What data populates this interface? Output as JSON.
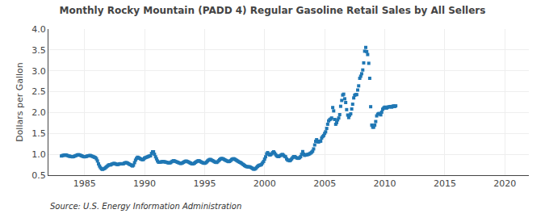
{
  "chart_data": {
    "type": "scatter",
    "title": "Monthly Rocky Mountain (PADD 4) Regular Gasoline Retail Sales by All Sellers",
    "ylabel": "Dollars per Gallon",
    "annotations": [
      "Source: U.S. Energy Information Administration"
    ],
    "xlim": [
      1982,
      2022
    ],
    "ylim": [
      0.5,
      4.0
    ],
    "xticks": [
      1985,
      1990,
      1995,
      2000,
      2005,
      2010,
      2015,
      2020
    ],
    "yticks": [
      0.5,
      {
        "value": 1.0,
        "label": "1.0"
      },
      1.5,
      {
        "value": 2.0,
        "label": "2.0"
      },
      2.5,
      {
        "value": 3.0,
        "label": "3.0"
      },
      3.5,
      {
        "value": 4.0,
        "label": "4.0"
      }
    ],
    "grid": true,
    "marker": "square",
    "x": [
      1983.08,
      1983.17,
      1983.25,
      1983.33,
      1983.42,
      1983.5,
      1983.58,
      1983.67,
      1983.75,
      1983.83,
      1983.92,
      1984.0,
      1984.08,
      1984.17,
      1984.25,
      1984.33,
      1984.42,
      1984.5,
      1984.58,
      1984.67,
      1984.75,
      1984.83,
      1984.92,
      1985.0,
      1985.08,
      1985.17,
      1985.25,
      1985.33,
      1985.42,
      1985.5,
      1985.58,
      1985.67,
      1985.75,
      1985.83,
      1985.92,
      1986.0,
      1986.08,
      1986.17,
      1986.25,
      1986.33,
      1986.42,
      1986.5,
      1986.58,
      1986.67,
      1986.75,
      1986.83,
      1986.92,
      1987.0,
      1987.08,
      1987.17,
      1987.25,
      1987.33,
      1987.42,
      1987.5,
      1987.58,
      1987.67,
      1987.75,
      1987.83,
      1987.92,
      1988.0,
      1988.08,
      1988.17,
      1988.25,
      1988.33,
      1988.42,
      1988.5,
      1988.58,
      1988.67,
      1988.75,
      1988.83,
      1988.92,
      1989.0,
      1989.08,
      1989.17,
      1989.25,
      1989.33,
      1989.42,
      1989.5,
      1989.58,
      1989.67,
      1989.75,
      1989.83,
      1989.92,
      1990.0,
      1990.08,
      1990.17,
      1990.25,
      1990.33,
      1990.42,
      1990.5,
      1990.58,
      1990.67,
      1990.75,
      1990.83,
      1990.92,
      1991.0,
      1991.08,
      1991.17,
      1991.25,
      1991.33,
      1991.42,
      1991.5,
      1991.58,
      1991.67,
      1991.75,
      1991.83,
      1991.92,
      1992.0,
      1992.08,
      1992.17,
      1992.25,
      1992.33,
      1992.42,
      1992.5,
      1992.58,
      1992.67,
      1992.75,
      1992.83,
      1992.92,
      1993.0,
      1993.08,
      1993.17,
      1993.25,
      1993.33,
      1993.42,
      1993.5,
      1993.58,
      1993.67,
      1993.75,
      1993.83,
      1993.92,
      1994.0,
      1994.08,
      1994.17,
      1994.25,
      1994.33,
      1994.42,
      1994.5,
      1994.58,
      1994.67,
      1994.75,
      1994.83,
      1994.92,
      1995.0,
      1995.08,
      1995.17,
      1995.25,
      1995.33,
      1995.42,
      1995.5,
      1995.58,
      1995.67,
      1995.75,
      1995.83,
      1995.92,
      1996.0,
      1996.08,
      1996.17,
      1996.25,
      1996.33,
      1996.42,
      1996.5,
      1996.58,
      1996.67,
      1996.75,
      1996.83,
      1996.92,
      1997.0,
      1997.08,
      1997.17,
      1997.25,
      1997.33,
      1997.42,
      1997.5,
      1997.58,
      1997.67,
      1997.75,
      1997.83,
      1997.92,
      1998.0,
      1998.08,
      1998.17,
      1998.25,
      1998.33,
      1998.42,
      1998.5,
      1998.58,
      1998.67,
      1998.75,
      1998.83,
      1998.92,
      1999.0,
      1999.08,
      1999.17,
      1999.25,
      1999.33,
      1999.42,
      1999.5,
      1999.58,
      1999.67,
      1999.75,
      1999.83,
      1999.92,
      2000.0,
      2000.08,
      2000.17,
      2000.25,
      2000.33,
      2000.42,
      2000.5,
      2000.58,
      2000.67,
      2000.75,
      2000.83,
      2000.92,
      2001.0,
      2001.08,
      2001.17,
      2001.25,
      2001.33,
      2001.42,
      2001.5,
      2001.58,
      2001.67,
      2001.75,
      2001.83,
      2001.92,
      2002.0,
      2002.08,
      2002.17,
      2002.25,
      2002.33,
      2002.42,
      2002.5,
      2002.58,
      2002.67,
      2002.75,
      2002.83,
      2002.92,
      2003.0,
      2003.08,
      2003.17,
      2003.25,
      2003.33,
      2003.42,
      2003.5,
      2003.58,
      2003.67,
      2003.75,
      2003.83,
      2003.92,
      2004.0,
      2004.08,
      2004.17,
      2004.25,
      2004.33,
      2004.42,
      2004.5,
      2004.58,
      2004.67,
      2004.75,
      2004.83,
      2004.92,
      2005.0,
      2005.08,
      2005.17,
      2005.25,
      2005.33,
      2005.42,
      2005.5,
      2005.58,
      2005.67,
      2005.75,
      2005.83,
      2005.92,
      2006.0,
      2006.08,
      2006.17,
      2006.25,
      2006.33,
      2006.42,
      2006.5,
      2006.58,
      2006.67,
      2006.75,
      2006.83,
      2006.92,
      2007.0,
      2007.08,
      2007.17,
      2007.25,
      2007.33,
      2007.42,
      2007.5,
      2007.58,
      2007.67,
      2007.75,
      2007.83,
      2007.92,
      2008.0,
      2008.08,
      2008.17,
      2008.25,
      2008.33,
      2008.42,
      2008.5,
      2008.58,
      2008.67,
      2008.75,
      2008.83,
      2008.92,
      2009.0,
      2009.08,
      2009.17,
      2009.25,
      2009.33,
      2009.42,
      2009.5,
      2009.58,
      2009.67,
      2009.75,
      2009.83,
      2009.92,
      2010.0,
      2010.08,
      2010.17,
      2010.25,
      2010.33,
      2010.42,
      2010.5,
      2010.58,
      2010.67,
      2010.75,
      2010.83,
      2010.92
    ],
    "values": [
      0.96,
      0.97,
      0.975,
      0.98,
      0.985,
      0.98,
      0.97,
      0.96,
      0.955,
      0.95,
      0.945,
      0.94,
      0.945,
      0.955,
      0.965,
      0.975,
      0.985,
      0.99,
      0.985,
      0.975,
      0.965,
      0.955,
      0.945,
      0.94,
      0.945,
      0.95,
      0.96,
      0.965,
      0.97,
      0.97,
      0.96,
      0.95,
      0.94,
      0.93,
      0.92,
      0.89,
      0.84,
      0.77,
      0.72,
      0.68,
      0.65,
      0.64,
      0.65,
      0.66,
      0.68,
      0.7,
      0.72,
      0.74,
      0.75,
      0.745,
      0.76,
      0.77,
      0.78,
      0.78,
      0.77,
      0.76,
      0.755,
      0.76,
      0.77,
      0.775,
      0.77,
      0.77,
      0.775,
      0.79,
      0.8,
      0.8,
      0.79,
      0.775,
      0.76,
      0.75,
      0.735,
      0.72,
      0.74,
      0.8,
      0.86,
      0.9,
      0.93,
      0.92,
      0.905,
      0.89,
      0.88,
      0.87,
      0.88,
      0.91,
      0.92,
      0.93,
      0.94,
      0.95,
      0.96,
      0.965,
      1.02,
      1.06,
      1.06,
      1.0,
      0.94,
      0.89,
      0.84,
      0.81,
      0.81,
      0.815,
      0.82,
      0.825,
      0.825,
      0.82,
      0.815,
      0.81,
      0.8,
      0.795,
      0.795,
      0.8,
      0.82,
      0.835,
      0.845,
      0.84,
      0.83,
      0.82,
      0.81,
      0.8,
      0.79,
      0.78,
      0.785,
      0.795,
      0.81,
      0.825,
      0.835,
      0.835,
      0.825,
      0.815,
      0.8,
      0.79,
      0.775,
      0.77,
      0.775,
      0.79,
      0.81,
      0.825,
      0.84,
      0.845,
      0.84,
      0.825,
      0.81,
      0.8,
      0.79,
      0.785,
      0.795,
      0.815,
      0.84,
      0.86,
      0.875,
      0.875,
      0.86,
      0.85,
      0.835,
      0.82,
      0.81,
      0.805,
      0.82,
      0.845,
      0.87,
      0.89,
      0.9,
      0.895,
      0.885,
      0.87,
      0.858,
      0.845,
      0.835,
      0.825,
      0.83,
      0.85,
      0.875,
      0.885,
      0.895,
      0.885,
      0.87,
      0.855,
      0.84,
      0.825,
      0.81,
      0.8,
      0.785,
      0.765,
      0.75,
      0.73,
      0.715,
      0.705,
      0.7,
      0.7,
      0.7,
      0.69,
      0.675,
      0.66,
      0.645,
      0.645,
      0.66,
      0.685,
      0.71,
      0.73,
      0.74,
      0.745,
      0.76,
      0.795,
      0.83,
      0.885,
      0.94,
      1.01,
      1.04,
      1.01,
      0.985,
      0.99,
      1.01,
      1.04,
      1.06,
      1.03,
      0.995,
      0.965,
      0.95,
      0.945,
      0.96,
      0.975,
      0.99,
      0.995,
      0.975,
      0.95,
      0.94,
      0.89,
      0.86,
      0.86,
      0.845,
      0.86,
      0.89,
      0.92,
      0.945,
      0.945,
      0.93,
      0.915,
      0.905,
      0.905,
      0.92,
      0.945,
      1.0,
      1.065,
      1.005,
      0.975,
      0.985,
      0.99,
      0.995,
      1.0,
      1.015,
      1.03,
      1.05,
      1.075,
      1.13,
      1.225,
      1.31,
      1.35,
      1.3,
      1.295,
      1.315,
      1.315,
      1.39,
      1.425,
      1.45,
      1.5,
      1.54,
      1.62,
      1.72,
      1.8,
      1.83,
      1.845,
      1.87,
      2.12,
      2.04,
      1.835,
      1.72,
      1.76,
      1.825,
      1.87,
      1.95,
      2.15,
      2.29,
      2.42,
      2.44,
      2.33,
      2.24,
      2.07,
      1.94,
      1.88,
      1.935,
      1.97,
      2.085,
      2.2,
      2.35,
      2.415,
      2.43,
      2.43,
      2.54,
      2.64,
      2.82,
      2.87,
      2.93,
      3.02,
      3.19,
      3.47,
      3.56,
      3.46,
      3.39,
      3.18,
      2.82,
      2.14,
      1.7,
      1.65,
      1.65,
      1.7,
      1.785,
      1.92,
      1.96,
      1.975,
      1.975,
      1.945,
      2.01,
      2.08,
      2.11,
      2.13,
      2.11,
      2.11,
      2.13,
      2.135,
      2.14,
      2.145,
      2.13,
      2.15,
      2.16,
      2.145,
      2.16
    ]
  }
}
